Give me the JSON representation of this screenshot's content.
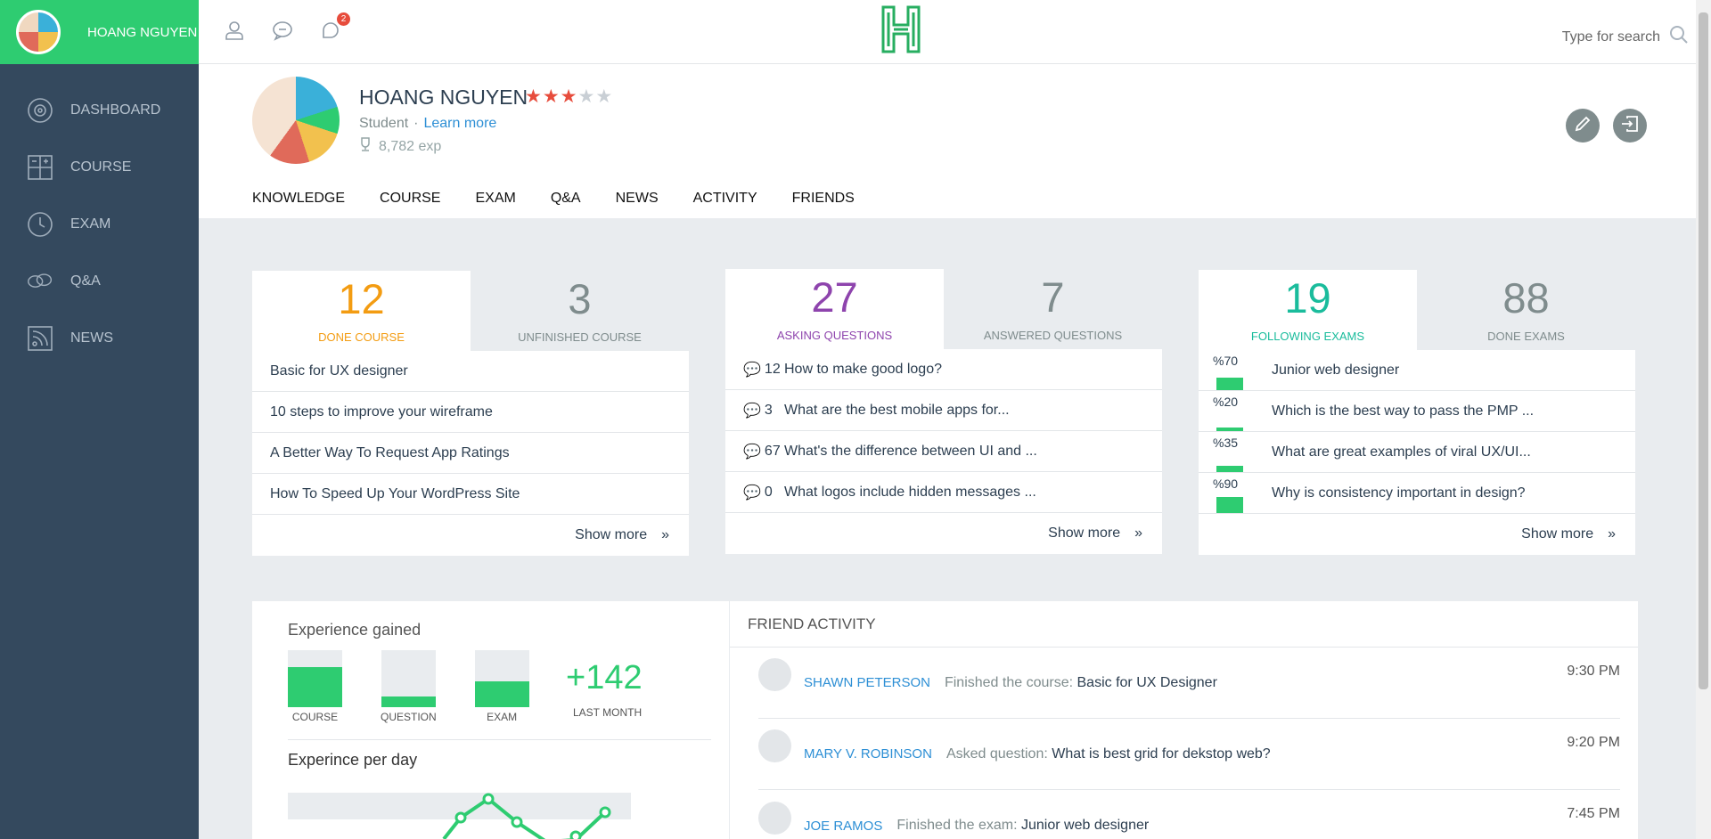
{
  "user": {
    "name": "HOANG NGUYEN",
    "role": "Student",
    "learn_more": "Learn more",
    "exp": "8,782 exp",
    "rating": 3,
    "rating_max": 5
  },
  "sidebar": {
    "items": [
      {
        "label": "DASHBOARD",
        "icon": "dashboard-icon"
      },
      {
        "label": "COURSE",
        "icon": "course-icon"
      },
      {
        "label": "EXAM",
        "icon": "clock-icon"
      },
      {
        "label": "Q&A",
        "icon": "qa-icon"
      },
      {
        "label": "NEWS",
        "icon": "rss-icon"
      }
    ]
  },
  "topbar": {
    "notification_count": "2",
    "search_placeholder": "Type for search"
  },
  "tabs": [
    "KNOWLEDGE",
    "COURSE",
    "EXAM",
    "Q&A",
    "NEWS",
    "ACTIVITY",
    "FRIENDS"
  ],
  "courses": {
    "left": {
      "num": "12",
      "label": "DONE COURSE",
      "color": "#f39c12"
    },
    "right": {
      "num": "3",
      "label": "UNFINISHED COURSE"
    },
    "items": [
      "Basic for UX designer",
      "10 steps to improve your wireframe",
      "A Better Way To Request App Ratings",
      "How To Speed Up Your WordPress Site"
    ],
    "show_more": "Show more"
  },
  "questions": {
    "left": {
      "num": "27",
      "label": "ASKING QUESTIONS",
      "color": "#8e44ad"
    },
    "right": {
      "num": "7",
      "label": "ANSWERED QUESTIONS"
    },
    "items": [
      {
        "count": "12",
        "text": "How to make good logo?"
      },
      {
        "count": "3",
        "text": "What are the best mobile apps for..."
      },
      {
        "count": "67",
        "text": "What's the difference between UI and ..."
      },
      {
        "count": "0",
        "text": "What logos include hidden messages ..."
      }
    ],
    "show_more": "Show more"
  },
  "exams": {
    "left": {
      "num": "19",
      "label": "FOLLOWING EXAMS",
      "color": "#1abc9c"
    },
    "right": {
      "num": "88",
      "label": "DONE EXAMS"
    },
    "items": [
      {
        "pct": "%70",
        "text": "Junior web designer"
      },
      {
        "pct": "%20",
        "text": "Which is the best way to pass the PMP ..."
      },
      {
        "pct": "%35",
        "text": "What are great examples of viral UX/UI..."
      },
      {
        "pct": "%90",
        "text": "Why is consistency important in design?"
      }
    ],
    "show_more": "Show more"
  },
  "experience": {
    "title": "Experience gained",
    "bars": [
      {
        "label": "COURSE",
        "fill": 0.7
      },
      {
        "label": "QUESTION",
        "fill": 0.18
      },
      {
        "label": "EXAM",
        "fill": 0.45
      }
    ],
    "total": "+142",
    "total_label": "LAST MONTH",
    "per_day_title": "Experince per day"
  },
  "friend_activity": {
    "title": "FRIEND ACTIVITY",
    "items": [
      {
        "user": "SHAWN PETERSON",
        "action": "Finished the course:",
        "object": "Basic for UX Designer",
        "time": "9:30 PM"
      },
      {
        "user": "MARY V. ROBINSON",
        "action": "Asked question:",
        "object": "What is best grid for dekstop web?",
        "time": "9:20 PM"
      },
      {
        "user": "JOE RAMOS",
        "action": "Finished the exam:",
        "object": "Junior web designer",
        "time": "7:45 PM"
      }
    ]
  },
  "colors": {
    "brand": "#2ecc71",
    "sidebar": "#34495e",
    "link": "#2d8fd5",
    "star": "#e74c3c"
  }
}
